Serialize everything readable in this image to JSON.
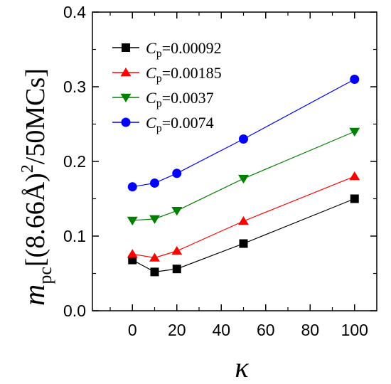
{
  "chart_data": {
    "type": "line",
    "title": "",
    "xlabel": "κ",
    "ylabel": {
      "m": "m",
      "sub": "pc",
      "bracket": "[(8.66Å)",
      "sup": "2",
      "rest": "/50MCs]"
    },
    "xlim": [
      -18,
      110
    ],
    "ylim": [
      0.0,
      0.4
    ],
    "xticks": [
      0,
      20,
      40,
      60,
      80,
      100
    ],
    "yticks": [
      0.0,
      0.1,
      0.2,
      0.3,
      0.4
    ],
    "xtick_labels": [
      "0",
      "20",
      "40",
      "60",
      "80",
      "100"
    ],
    "ytick_labels": [
      "0.0",
      "0.1",
      "0.2",
      "0.3",
      "0.4"
    ],
    "legend_position": "top-left",
    "grid": false,
    "x": [
      0,
      10,
      20,
      50,
      100
    ],
    "series": [
      {
        "name_prefix": "C",
        "name_sub": "p",
        "name_value": "=0.00092",
        "color": "#000000",
        "marker": "square",
        "values": [
          0.068,
          0.052,
          0.056,
          0.09,
          0.15
        ]
      },
      {
        "name_prefix": "C",
        "name_sub": "p",
        "name_value": "=0.00185",
        "color": "#ff0000",
        "marker": "triangle-up",
        "values": [
          0.076,
          0.071,
          0.08,
          0.12,
          0.18
        ]
      },
      {
        "name_prefix": "C",
        "name_sub": "p",
        "name_value": "=0.0037",
        "color": "#008000",
        "marker": "triangle-down",
        "values": [
          0.121,
          0.123,
          0.134,
          0.177,
          0.24
        ]
      },
      {
        "name_prefix": "C",
        "name_sub": "p",
        "name_value": "=0.0074",
        "color": "#0000ff",
        "marker": "circle",
        "values": [
          0.166,
          0.171,
          0.184,
          0.23,
          0.31
        ]
      }
    ]
  }
}
